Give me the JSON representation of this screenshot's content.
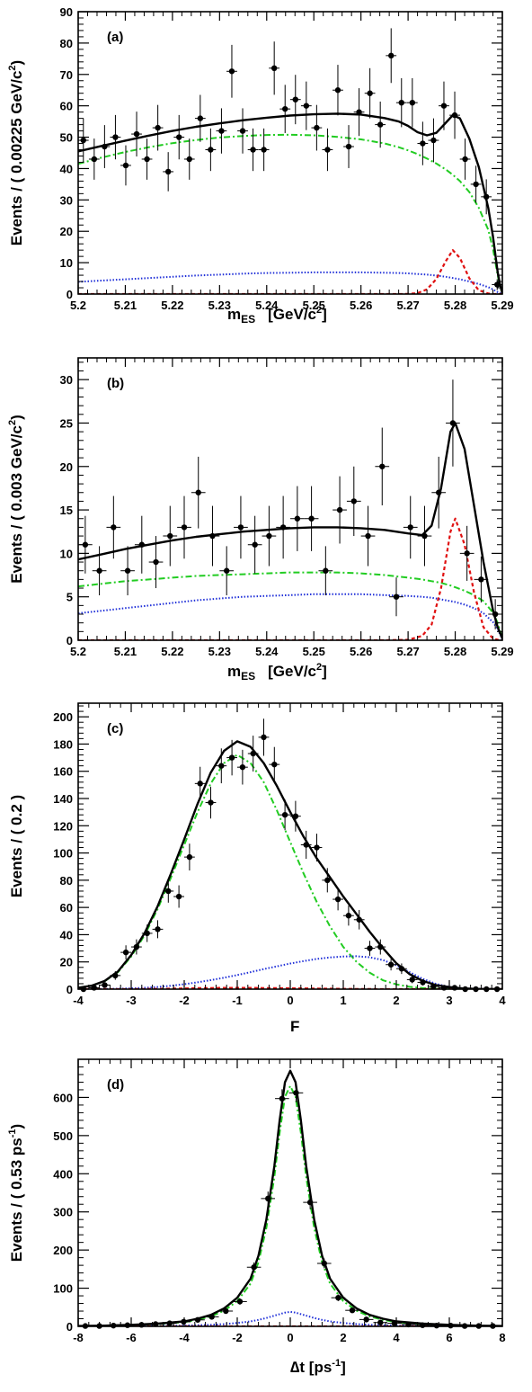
{
  "colors": {
    "total": "#000000",
    "continuum": "#22cc22",
    "bbbar": "#1f2fd8",
    "signal": "#e01010",
    "points": "#000000"
  },
  "chart_data": [
    {
      "type": "scatter",
      "panel_label": "(a)",
      "xlabel_main": "m",
      "xlabel_sub": "ES",
      "xlabel_unit": "[GeV/c",
      "xlabel_unit_sup": "2",
      "xlabel_unit_close": "]",
      "ylabel": "Events / ( 0.00225 GeV/c",
      "ylabel_sup": "2",
      "ylabel_close": ")",
      "xlim": [
        5.2,
        5.29
      ],
      "ylim": [
        0,
        90
      ],
      "xticks": [
        5.2,
        5.21,
        5.22,
        5.23,
        5.24,
        5.25,
        5.26,
        5.27,
        5.28,
        5.29
      ],
      "xtick_labels": [
        "5.2",
        "5.21",
        "5.22",
        "5.23",
        "5.24",
        "5.25",
        "5.26",
        "5.27",
        "5.28",
        "5.29"
      ],
      "yticks": [
        0,
        10,
        20,
        30,
        40,
        50,
        60,
        70,
        80,
        90
      ],
      "ytick_labels": [
        "0",
        "10",
        "20",
        "30",
        "40",
        "50",
        "60",
        "70",
        "80",
        "90"
      ],
      "points": {
        "x": [
          5.2011,
          5.2034,
          5.2056,
          5.2079,
          5.2101,
          5.2124,
          5.2146,
          5.2169,
          5.2191,
          5.2214,
          5.2236,
          5.2259,
          5.2281,
          5.2304,
          5.2326,
          5.2349,
          5.2371,
          5.2394,
          5.2416,
          5.2439,
          5.2461,
          5.2484,
          5.2506,
          5.2529,
          5.2551,
          5.2574,
          5.2596,
          5.2619,
          5.2641,
          5.2664,
          5.2686,
          5.2709,
          5.2731,
          5.2754,
          5.2776,
          5.2799,
          5.2821,
          5.2844,
          5.2866,
          5.2889
        ],
        "y": [
          49,
          43,
          47,
          50,
          41,
          51,
          43,
          53,
          39,
          50,
          43,
          56,
          46,
          52,
          71,
          52,
          46,
          46,
          72,
          59,
          62,
          60,
          53,
          46,
          65,
          47,
          58,
          64,
          54,
          76,
          61,
          61,
          48,
          49,
          60,
          57,
          43,
          35,
          31,
          3
        ],
        "xerr": 0.001125
      },
      "curves": {
        "x": [
          5.2,
          5.205,
          5.21,
          5.215,
          5.22,
          5.225,
          5.23,
          5.235,
          5.24,
          5.245,
          5.25,
          5.255,
          5.26,
          5.265,
          5.268,
          5.27,
          5.272,
          5.274,
          5.276,
          5.278,
          5.2795,
          5.281,
          5.283,
          5.285,
          5.287,
          5.288,
          5.289,
          5.2895,
          5.29
        ],
        "total": [
          45.5,
          47.2,
          48.9,
          50.5,
          52,
          53.3,
          54.4,
          55.4,
          56.2,
          56.9,
          57.3,
          57.5,
          57.2,
          56.1,
          55,
          53.6,
          51.6,
          50.6,
          51.4,
          54.6,
          57,
          56,
          49.5,
          40.5,
          27.5,
          18.5,
          7,
          3,
          0.3
        ],
        "continuum": [
          41.5,
          43.5,
          45.3,
          46.8,
          48.1,
          49.1,
          49.9,
          50.4,
          50.7,
          50.8,
          50.6,
          50.1,
          49.3,
          48,
          46.8,
          45.8,
          44.6,
          43.2,
          41.6,
          39.7,
          38,
          36,
          32.5,
          27.5,
          20.5,
          14.5,
          6,
          2.5,
          0.3
        ],
        "bbbar": [
          3.9,
          4.3,
          4.7,
          5.1,
          5.5,
          5.9,
          6.2,
          6.5,
          6.7,
          6.8,
          6.9,
          6.9,
          6.9,
          6.8,
          6.7,
          6.6,
          6.4,
          6.2,
          5.9,
          5.5,
          5.1,
          4.7,
          4,
          3.2,
          2.2,
          1.5,
          0.6,
          0.3,
          0
        ],
        "signal": [
          0,
          0,
          0,
          0,
          0,
          0,
          0,
          0,
          0,
          0,
          0,
          0,
          0,
          0,
          0,
          0.05,
          0.3,
          1.5,
          4.8,
          10.5,
          14,
          11.5,
          5,
          1.2,
          0.2,
          0.05,
          0,
          0,
          0
        ]
      }
    },
    {
      "type": "scatter",
      "panel_label": "(b)",
      "xlabel_main": "m",
      "xlabel_sub": "ES",
      "xlabel_unit": "[GeV/c",
      "xlabel_unit_sup": "2",
      "xlabel_unit_close": "]",
      "ylabel": "Events / ( 0.003 GeV/c",
      "ylabel_sup": "2",
      "ylabel_close": ")",
      "xlim": [
        5.2,
        5.29
      ],
      "ylim": [
        0,
        32.5
      ],
      "xticks": [
        5.2,
        5.21,
        5.22,
        5.23,
        5.24,
        5.25,
        5.26,
        5.27,
        5.28,
        5.29
      ],
      "xtick_labels": [
        "5.2",
        "5.21",
        "5.22",
        "5.23",
        "5.24",
        "5.25",
        "5.26",
        "5.27",
        "5.28",
        "5.29"
      ],
      "yticks": [
        0,
        5,
        10,
        15,
        20,
        25,
        30
      ],
      "ytick_labels": [
        "0",
        "5",
        "10",
        "15",
        "20",
        "25",
        "30"
      ],
      "points": {
        "x": [
          5.2015,
          5.2045,
          5.2075,
          5.2105,
          5.2135,
          5.2165,
          5.2195,
          5.2225,
          5.2255,
          5.2285,
          5.2315,
          5.2345,
          5.2375,
          5.2405,
          5.2435,
          5.2465,
          5.2495,
          5.2525,
          5.2555,
          5.2585,
          5.2615,
          5.2645,
          5.2675,
          5.2705,
          5.2735,
          5.2765,
          5.2795,
          5.2825,
          5.2855,
          5.2885
        ],
        "y": [
          11,
          8,
          13,
          8,
          11,
          9,
          12,
          13,
          17,
          12,
          8,
          13,
          11,
          12,
          13,
          14,
          14,
          8,
          15,
          16,
          12,
          20,
          5,
          13,
          12,
          17,
          25,
          10,
          7,
          3
        ],
        "xerr": 0.0015
      },
      "curves": {
        "x": [
          5.2,
          5.205,
          5.21,
          5.215,
          5.22,
          5.225,
          5.23,
          5.235,
          5.24,
          5.245,
          5.25,
          5.255,
          5.26,
          5.265,
          5.27,
          5.273,
          5.275,
          5.277,
          5.279,
          5.28,
          5.282,
          5.284,
          5.286,
          5.288,
          5.289,
          5.29
        ],
        "total": [
          9.3,
          9.9,
          10.5,
          11,
          11.5,
          11.9,
          12.2,
          12.5,
          12.7,
          12.9,
          13,
          13,
          12.9,
          12.7,
          12.3,
          12.1,
          13.2,
          17.5,
          24,
          25,
          22,
          15.5,
          9,
          3.5,
          1.5,
          0.2
        ],
        "continuum": [
          6.2,
          6.5,
          6.8,
          7,
          7.2,
          7.4,
          7.5,
          7.6,
          7.7,
          7.8,
          7.8,
          7.8,
          7.7,
          7.5,
          7.2,
          7,
          6.8,
          6.6,
          6.3,
          6.1,
          5.7,
          5.2,
          4.5,
          3.2,
          2,
          0.2
        ],
        "bbbar": [
          3.1,
          3.4,
          3.7,
          4,
          4.3,
          4.6,
          4.8,
          5,
          5.1,
          5.2,
          5.3,
          5.3,
          5.3,
          5.2,
          5.1,
          5,
          4.9,
          4.7,
          4.5,
          4.4,
          4.1,
          3.7,
          3.1,
          2.1,
          1.3,
          0.1
        ],
        "signal": [
          0,
          0,
          0,
          0,
          0,
          0,
          0,
          0,
          0,
          0,
          0,
          0,
          0,
          0,
          0.05,
          0.5,
          1.8,
          6,
          12.5,
          14,
          11,
          5.5,
          1.5,
          0.2,
          0.05,
          0
        ]
      }
    },
    {
      "type": "scatter",
      "panel_label": "(c)",
      "xlabel_main": "F",
      "xlabel_sub": "",
      "xlabel_unit": "",
      "xlabel_unit_sup": "",
      "xlabel_unit_close": "",
      "ylabel": "Events / ( 0.2 )",
      "ylabel_sup": "",
      "ylabel_close": "",
      "xlim": [
        -4,
        4
      ],
      "ylim": [
        0,
        210
      ],
      "xticks": [
        -4,
        -3,
        -2,
        -1,
        0,
        1,
        2,
        3,
        4
      ],
      "xtick_labels": [
        "-4",
        "-3",
        "-2",
        "-1",
        "0",
        "1",
        "2",
        "3",
        "4"
      ],
      "yticks": [
        0,
        20,
        40,
        60,
        80,
        100,
        120,
        140,
        160,
        180,
        200
      ],
      "ytick_labels": [
        "0",
        "20",
        "40",
        "60",
        "80",
        "100",
        "120",
        "140",
        "160",
        "180",
        "200"
      ],
      "points": {
        "x": [
          -3.9,
          -3.7,
          -3.5,
          -3.3,
          -3.1,
          -2.9,
          -2.7,
          -2.5,
          -2.3,
          -2.1,
          -1.9,
          -1.7,
          -1.5,
          -1.3,
          -1.1,
          -0.9,
          -0.7,
          -0.5,
          -0.3,
          -0.1,
          0.1,
          0.3,
          0.5,
          0.7,
          0.9,
          1.1,
          1.3,
          1.5,
          1.7,
          1.9,
          2.1,
          2.3,
          2.5,
          2.7,
          2.9,
          3.1,
          3.3,
          3.5,
          3.7,
          3.9
        ],
        "y": [
          0,
          1,
          3,
          10,
          27,
          31,
          41,
          44,
          72,
          68,
          97,
          151,
          137,
          164,
          170,
          163,
          173,
          185,
          165,
          128,
          127,
          106,
          104,
          80,
          66,
          54,
          51,
          30,
          31,
          18,
          15,
          7,
          5,
          2,
          1,
          1,
          0,
          0,
          0,
          0
        ],
        "xerr": 0.1
      },
      "curves": {
        "x": [
          -4,
          -3.75,
          -3.5,
          -3.25,
          -3,
          -2.75,
          -2.5,
          -2.25,
          -2,
          -1.75,
          -1.5,
          -1.25,
          -1,
          -0.75,
          -0.5,
          -0.25,
          0,
          0.25,
          0.5,
          0.75,
          1,
          1.25,
          1.5,
          1.75,
          2,
          2.25,
          2.5,
          2.75,
          3,
          3.25,
          3.5,
          3.75,
          4
        ],
        "total": [
          1,
          2.5,
          6,
          13,
          25,
          41,
          61,
          85,
          110,
          136,
          159,
          175,
          182,
          178,
          166,
          149,
          130,
          112,
          96,
          82,
          68,
          55,
          42,
          30,
          19,
          11,
          6,
          3,
          1.5,
          0.5,
          0.2,
          0.1,
          0
        ],
        "continuum": [
          1,
          2.5,
          5.8,
          12.5,
          24,
          39.5,
          59,
          82,
          106,
          130,
          151,
          166,
          172,
          166,
          152,
          131,
          108,
          85,
          64,
          46,
          31,
          20,
          12,
          6.5,
          3.5,
          1.7,
          0.8,
          0.3,
          0.1,
          0,
          0,
          0,
          0
        ],
        "bbbar": [
          0,
          0.05,
          0.1,
          0.3,
          0.6,
          1,
          1.6,
          2.5,
          3.6,
          5,
          6.6,
          8.4,
          10.4,
          12.5,
          14.7,
          16.8,
          18.8,
          20.6,
          22.2,
          23.3,
          24,
          24.2,
          23.4,
          21.3,
          17.5,
          12.5,
          7.5,
          3.8,
          1.6,
          0.6,
          0.2,
          0.1,
          0
        ],
        "signal": [
          0,
          0,
          0,
          0,
          0,
          0.1,
          0.2,
          0.3,
          0.5,
          0.7,
          0.8,
          0.9,
          0.9,
          0.9,
          0.8,
          0.7,
          0.6,
          0.5,
          0.4,
          0.3,
          0.2,
          0.1,
          0.1,
          0,
          0,
          0,
          0,
          0,
          0,
          0,
          0,
          0,
          0
        ]
      }
    },
    {
      "type": "scatter",
      "panel_label": "(d)",
      "xlabel_main": "∆t [ps",
      "xlabel_sub": "",
      "xlabel_unit": "",
      "xlabel_unit_sup": "-1",
      "xlabel_unit_close": "]",
      "ylabel": "Events / ( 0.53 ps",
      "ylabel_sup": "-1",
      "ylabel_close": ")",
      "xlim": [
        -8,
        8
      ],
      "ylim": [
        0,
        700
      ],
      "xticks": [
        -8,
        -6,
        -4,
        -2,
        0,
        2,
        4,
        6,
        8
      ],
      "xtick_labels": [
        "-8",
        "-6",
        "-4",
        "-2",
        "0",
        "2",
        "4",
        "6",
        "8"
      ],
      "yticks": [
        0,
        100,
        200,
        300,
        400,
        500,
        600
      ],
      "ytick_labels": [
        "0",
        "100",
        "200",
        "300",
        "400",
        "500",
        "600"
      ],
      "points": {
        "x": [
          -7.73,
          -7.2,
          -6.67,
          -6.14,
          -5.61,
          -5.08,
          -4.55,
          -4.02,
          -3.49,
          -2.96,
          -2.43,
          -1.9,
          -1.37,
          -0.84,
          -0.31,
          0.22,
          0.75,
          1.28,
          1.81,
          2.34,
          2.87,
          3.4,
          3.93,
          4.46,
          4.99,
          5.52,
          6.05,
          6.58,
          7.11,
          7.64
        ],
        "y": [
          1,
          1,
          2,
          3,
          4,
          6,
          8,
          12,
          17,
          25,
          40,
          65,
          155,
          335,
          597,
          612,
          325,
          165,
          75,
          42,
          18,
          10,
          8,
          5,
          3,
          2,
          2,
          1,
          1,
          1
        ],
        "xerr": 0.265
      },
      "curves": {
        "x": [
          -8,
          -7,
          -6,
          -5,
          -4,
          -3.5,
          -3,
          -2.5,
          -2,
          -1.5,
          -1.2,
          -0.9,
          -0.6,
          -0.4,
          -0.2,
          0,
          0.2,
          0.4,
          0.6,
          0.9,
          1.2,
          1.5,
          2,
          2.5,
          3,
          3.5,
          4,
          5,
          6,
          7,
          8
        ],
        "total": [
          1,
          2,
          4,
          7,
          13,
          20,
          30,
          47,
          75,
          125,
          185,
          280,
          420,
          540,
          640,
          670,
          640,
          540,
          420,
          280,
          185,
          125,
          75,
          47,
          30,
          20,
          13,
          7,
          4,
          2,
          1
        ],
        "continuum": [
          1,
          1.5,
          3,
          6,
          11,
          17,
          26,
          41,
          66,
          112,
          168,
          258,
          392,
          508,
          602,
          630,
          602,
          508,
          392,
          258,
          168,
          112,
          66,
          41,
          26,
          17,
          11,
          6,
          3,
          1.5,
          1
        ],
        "bbbar": [
          0,
          0.2,
          0.5,
          1,
          2,
          3,
          4,
          6,
          9,
          13,
          17,
          22,
          28,
          32,
          36,
          38,
          36,
          32,
          28,
          22,
          17,
          13,
          9,
          6,
          4,
          3,
          2,
          1,
          0.5,
          0.2,
          0
        ],
        "signal": [
          0,
          0,
          0,
          0,
          0,
          0,
          0,
          0,
          0,
          0,
          0,
          0,
          0,
          0,
          0,
          0,
          0,
          0,
          0,
          0,
          0,
          0,
          0,
          0,
          0,
          0,
          0,
          0,
          0,
          0,
          0
        ]
      }
    }
  ]
}
